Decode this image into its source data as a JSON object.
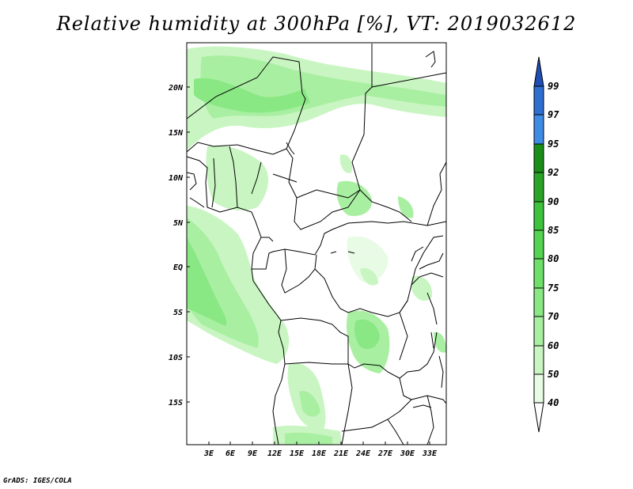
{
  "title": "Relative humidity at 300hPa [%], VT: 2019032612",
  "credit": "GrADS: IGES/COLA",
  "map": {
    "lon_range": [
      0,
      35.5
    ],
    "lat_range": [
      -20.7,
      24.1
    ],
    "lon_ticks": [
      "3E",
      "6E",
      "9E",
      "12E",
      "15E",
      "18E",
      "21E",
      "24E",
      "27E",
      "30E",
      "33E"
    ],
    "lat_ticks": [
      "20N",
      "15N",
      "10N",
      "5N",
      "EQ",
      "5S",
      "10S",
      "15S"
    ]
  },
  "colorbar": {
    "levels": [
      "40",
      "50",
      "60",
      "70",
      "75",
      "80",
      "85",
      "90",
      "92",
      "95",
      "97",
      "99"
    ],
    "colors": [
      "#e8fbe5",
      "#c9f5c2",
      "#a9efa2",
      "#8ae884",
      "#6edf69",
      "#55d452",
      "#3ec43c",
      "#2aa428",
      "#198f18",
      "#3f8ce6",
      "#2e6fd1",
      "#1f4fb5"
    ]
  }
}
